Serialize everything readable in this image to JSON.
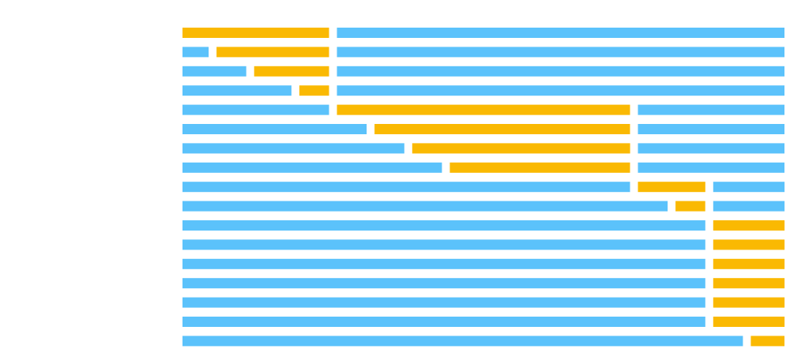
{
  "diagram": {
    "colors": {
      "background": "#ffffff",
      "other": "#5bc2fb",
      "highlight": "#fab902"
    },
    "column_count": 4,
    "rows": [
      {
        "segments": [
          {
            "kind": "highlight",
            "from": 0,
            "to": 1
          },
          {
            "kind": "other",
            "from": 1,
            "to": 4
          }
        ]
      },
      {
        "segments": [
          {
            "kind": "other",
            "from": 0,
            "to": 0.2
          },
          {
            "kind": "highlight",
            "from": 0.2,
            "to": 1
          },
          {
            "kind": "other",
            "from": 1,
            "to": 4
          }
        ]
      },
      {
        "segments": [
          {
            "kind": "other",
            "from": 0,
            "to": 0.45
          },
          {
            "kind": "highlight",
            "from": 0.45,
            "to": 1
          },
          {
            "kind": "other",
            "from": 1,
            "to": 4
          }
        ]
      },
      {
        "segments": [
          {
            "kind": "other",
            "from": 0,
            "to": 0.75
          },
          {
            "kind": "highlight",
            "from": 0.75,
            "to": 1
          },
          {
            "kind": "other",
            "from": 1,
            "to": 4
          }
        ]
      },
      {
        "segments": [
          {
            "kind": "other",
            "from": 0,
            "to": 1
          },
          {
            "kind": "highlight",
            "from": 1,
            "to": 3
          },
          {
            "kind": "other",
            "from": 3,
            "to": 4
          }
        ]
      },
      {
        "segments": [
          {
            "kind": "other",
            "from": 0,
            "to": 1.25
          },
          {
            "kind": "highlight",
            "from": 1.25,
            "to": 3
          },
          {
            "kind": "other",
            "from": 3,
            "to": 4
          }
        ]
      },
      {
        "segments": [
          {
            "kind": "other",
            "from": 0,
            "to": 1.5
          },
          {
            "kind": "highlight",
            "from": 1.5,
            "to": 3
          },
          {
            "kind": "other",
            "from": 3,
            "to": 4
          }
        ]
      },
      {
        "segments": [
          {
            "kind": "other",
            "from": 0,
            "to": 1.75
          },
          {
            "kind": "highlight",
            "from": 1.75,
            "to": 3
          },
          {
            "kind": "other",
            "from": 3,
            "to": 4
          }
        ]
      },
      {
        "segments": [
          {
            "kind": "other",
            "from": 0,
            "to": 3
          },
          {
            "kind": "highlight",
            "from": 3,
            "to": 3.5
          },
          {
            "kind": "other",
            "from": 3.5,
            "to": 4
          }
        ]
      },
      {
        "segments": [
          {
            "kind": "other",
            "from": 0,
            "to": 3.25
          },
          {
            "kind": "highlight",
            "from": 3.25,
            "to": 3.5
          },
          {
            "kind": "other",
            "from": 3.5,
            "to": 4
          }
        ]
      },
      {
        "segments": [
          {
            "kind": "other",
            "from": 0,
            "to": 3.5
          },
          {
            "kind": "highlight",
            "from": 3.5,
            "to": 4
          }
        ]
      },
      {
        "segments": [
          {
            "kind": "other",
            "from": 0,
            "to": 3.5
          },
          {
            "kind": "highlight",
            "from": 3.5,
            "to": 4
          }
        ]
      },
      {
        "segments": [
          {
            "kind": "other",
            "from": 0,
            "to": 3.5
          },
          {
            "kind": "highlight",
            "from": 3.5,
            "to": 4
          }
        ]
      },
      {
        "segments": [
          {
            "kind": "other",
            "from": 0,
            "to": 3.5
          },
          {
            "kind": "highlight",
            "from": 3.5,
            "to": 4
          }
        ]
      },
      {
        "segments": [
          {
            "kind": "other",
            "from": 0,
            "to": 3.5
          },
          {
            "kind": "highlight",
            "from": 3.5,
            "to": 4
          }
        ]
      },
      {
        "segments": [
          {
            "kind": "other",
            "from": 0,
            "to": 3.5
          },
          {
            "kind": "highlight",
            "from": 3.5,
            "to": 4
          }
        ]
      },
      {
        "segments": [
          {
            "kind": "other",
            "from": 0,
            "to": 3.75
          },
          {
            "kind": "highlight",
            "from": 3.75,
            "to": 4
          }
        ]
      }
    ]
  }
}
